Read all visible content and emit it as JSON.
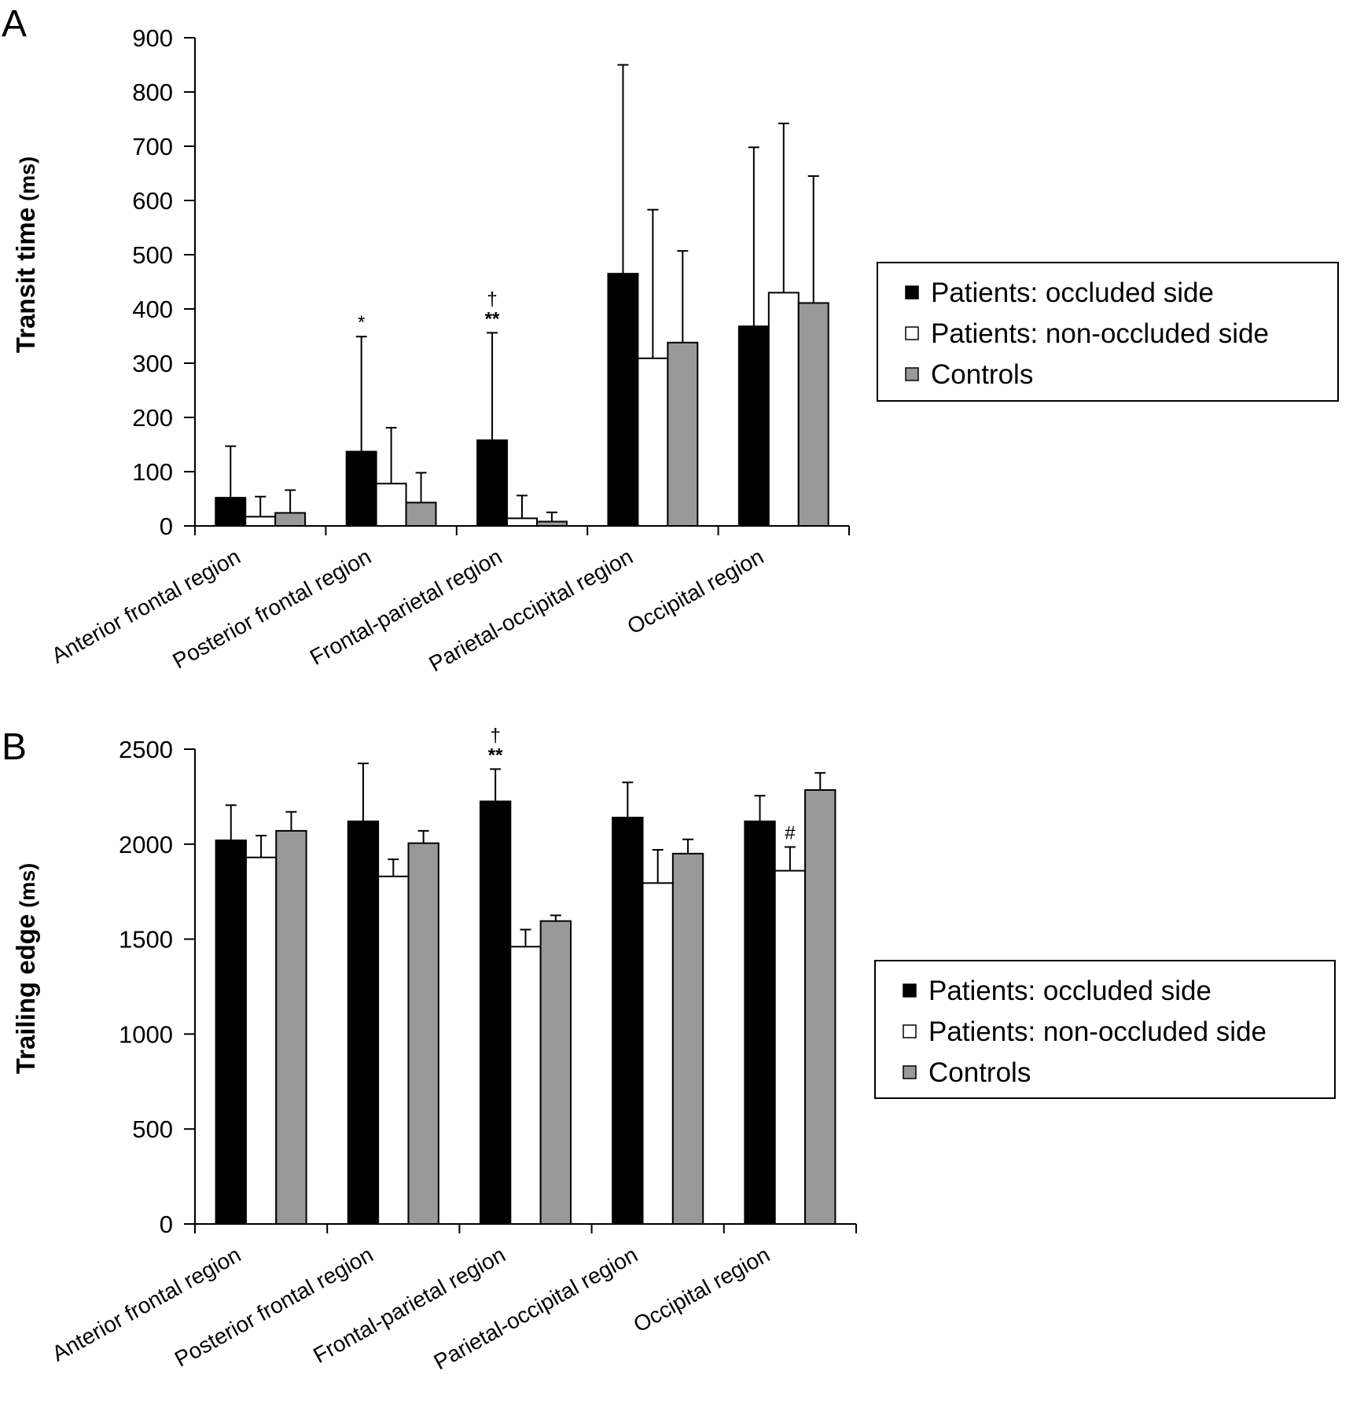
{
  "chart_data": [
    {
      "panel": "A",
      "type": "bar",
      "ylabel": "Transit time",
      "ylabel_unit": "(ms)",
      "xlabel": "",
      "ylim": [
        0,
        900
      ],
      "yticks": [
        0,
        100,
        200,
        300,
        400,
        500,
        600,
        700,
        800,
        900
      ],
      "categories": [
        "Anterior frontal region",
        "Posterior frontal region",
        "Frontal-parietal region",
        "Parietal-occipital region",
        "Occipital region"
      ],
      "series": [
        {
          "name": "Patients: occluded side",
          "color": "#000000",
          "values": [
            52,
            137,
            158,
            465,
            368
          ],
          "errors": [
            95,
            212,
            198,
            385,
            330
          ]
        },
        {
          "name": "Patients: non-occluded side",
          "color": "#ffffff",
          "values": [
            17,
            78,
            14,
            309,
            430
          ],
          "errors": [
            37,
            103,
            42,
            274,
            312
          ]
        },
        {
          "name": "Controls",
          "color": "#999999",
          "values": [
            24,
            43,
            8,
            338,
            411
          ],
          "errors": [
            42,
            55,
            17,
            169,
            234
          ]
        }
      ],
      "annotations": [
        {
          "category": 1,
          "series": 0,
          "lines": [
            "*"
          ]
        },
        {
          "category": 2,
          "series": 0,
          "lines": [
            "†",
            "**"
          ]
        }
      ],
      "legend": {
        "position": "right",
        "entries": [
          "Patients: occluded side",
          "Patients: non-occluded side",
          "Controls"
        ]
      },
      "grid": false
    },
    {
      "panel": "B",
      "type": "bar",
      "ylabel": "Trailing edge",
      "ylabel_unit": "(ms)",
      "xlabel": "",
      "ylim": [
        0,
        2500
      ],
      "yticks": [
        0,
        500,
        1000,
        1500,
        2000,
        2500
      ],
      "categories": [
        "Anterior frontal region",
        "Posterior frontal region",
        "Frontal-parietal region",
        "Parietal-occipital region",
        "Occipital region"
      ],
      "series": [
        {
          "name": "Patients: occluded side",
          "color": "#000000",
          "values": [
            2020,
            2120,
            2225,
            2140,
            2120
          ],
          "errors": [
            185,
            305,
            170,
            185,
            135
          ]
        },
        {
          "name": "Patients: non-occluded side",
          "color": "#ffffff",
          "values": [
            1930,
            1830,
            1460,
            1795,
            1860
          ],
          "errors": [
            115,
            90,
            90,
            175,
            125
          ]
        },
        {
          "name": "Controls",
          "color": "#999999",
          "values": [
            2070,
            2005,
            1595,
            1950,
            2285
          ],
          "errors": [
            100,
            65,
            30,
            75,
            90
          ]
        }
      ],
      "annotations": [
        {
          "category": 2,
          "series": 0,
          "lines": [
            "†",
            "**"
          ]
        },
        {
          "category": 4,
          "series": 1,
          "lines": [
            "#"
          ]
        }
      ],
      "legend": {
        "position": "right",
        "entries": [
          "Patients: occluded side",
          "Patients: non-occluded side",
          "Controls"
        ]
      },
      "grid": false
    }
  ]
}
